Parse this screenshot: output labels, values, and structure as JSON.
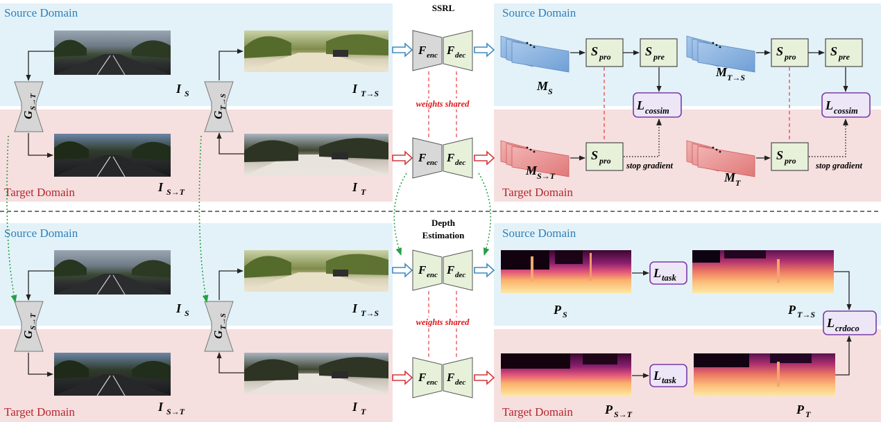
{
  "colors": {
    "source_bg": "#e3f2f9",
    "target_bg": "#f6dfdf",
    "source_text": "#2e7fb8",
    "target_text": "#b3272f",
    "module_fill": "#e7f0d9",
    "module_stroke": "#4a4a4a",
    "loss_fill": "#ece6f6",
    "loss_stroke": "#7a3aa6",
    "blue_arrow": "#3d89c2",
    "red_arrow": "#d2353b",
    "green_dotted": "#25a043",
    "red_dashed": "#e0161a"
  },
  "top": {
    "title": "SSRL",
    "source_label": "Source Domain",
    "target_label": "Target Domain",
    "weights_shared": "weights shared",
    "img_labels": {
      "is": {
        "main": "I",
        "sub": "S"
      },
      "its": {
        "main": "I",
        "sub": "T→S"
      },
      "ist": {
        "main": "I",
        "sub": "S→T"
      },
      "it": {
        "main": "I",
        "sub": "T"
      }
    },
    "generators": {
      "g_st": {
        "main": "G",
        "sub": "S→T"
      },
      "g_ts": {
        "main": "G",
        "sub": "T→S"
      }
    },
    "encoder": {
      "main": "F",
      "sub": "enc"
    },
    "decoder": {
      "main": "F",
      "sub": "dec"
    },
    "feature_labels": {
      "ms": {
        "main": "M",
        "sub": "S"
      },
      "mts": {
        "main": "M",
        "sub": "T→S"
      },
      "mst": {
        "main": "M",
        "sub": "S→T"
      },
      "mt": {
        "main": "M",
        "sub": "T"
      }
    },
    "spro": {
      "main": "S",
      "sub": "pro"
    },
    "spre": {
      "main": "S",
      "sub": "pre"
    },
    "loss": {
      "main": "L",
      "sub": "cossim"
    },
    "stop_gradient": "stop gradient"
  },
  "bottom": {
    "title_line1": "Depth",
    "title_line2": "Estimation",
    "source_label": "Source Domain",
    "target_label": "Target Domain",
    "weights_shared": "weights shared",
    "pred_labels": {
      "ps": {
        "main": "P",
        "sub": "S"
      },
      "pts": {
        "main": "P",
        "sub": "T→S"
      },
      "pst": {
        "main": "P",
        "sub": "S→T"
      },
      "pt": {
        "main": "P",
        "sub": "T"
      }
    },
    "task_loss": {
      "main": "L",
      "sub": "task"
    },
    "crdoco_loss": {
      "main": "L",
      "sub": "crdoco"
    }
  }
}
